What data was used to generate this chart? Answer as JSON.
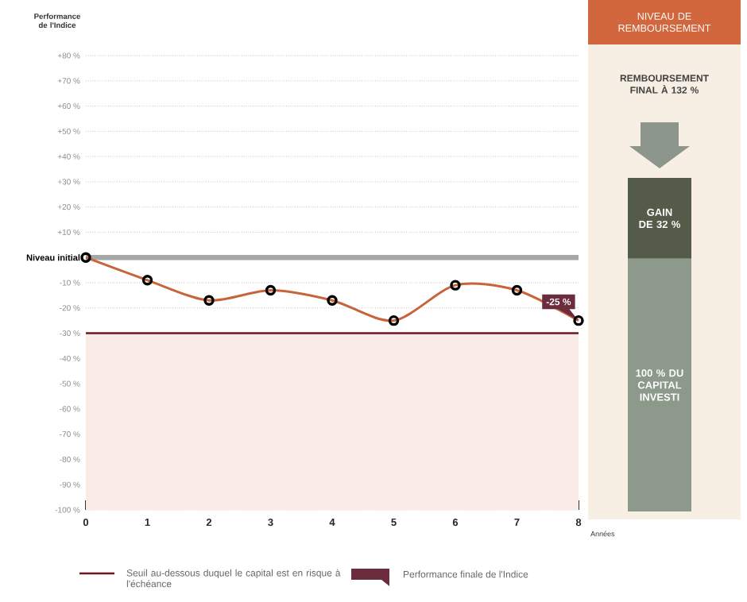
{
  "chart_data": [
    {
      "type": "line",
      "ylabel": "Performance de l'Indice",
      "xlabel": "Années",
      "x": [
        0,
        1,
        2,
        3,
        4,
        5,
        6,
        7,
        8
      ],
      "values": [
        0,
        -9,
        -17,
        -13,
        -17,
        -25,
        -11,
        -13,
        -25
      ],
      "color": "#c8643c",
      "marker": "circle",
      "xlim": [
        0,
        8
      ],
      "ylim": [
        -100,
        80
      ],
      "xticks": [
        0,
        1,
        2,
        3,
        4,
        5,
        6,
        7,
        8
      ],
      "yticks": [
        {
          "value": -100,
          "label": "-100 %"
        },
        {
          "value": -90,
          "label": "-90 %"
        },
        {
          "value": -80,
          "label": "-80 %"
        },
        {
          "value": -70,
          "label": "-70 %"
        },
        {
          "value": -60,
          "label": "-60 %"
        },
        {
          "value": -50,
          "label": "-50 %"
        },
        {
          "value": -40,
          "label": "-40 %"
        },
        {
          "value": -30,
          "label": "-30 %"
        },
        {
          "value": -20,
          "label": "-20 %"
        },
        {
          "value": -10,
          "label": "-10 %"
        },
        {
          "value": 0,
          "label": "Niveau initial"
        },
        {
          "value": 10,
          "label": "+10 %"
        },
        {
          "value": 20,
          "label": "+20 %"
        },
        {
          "value": 30,
          "label": "+30 %"
        },
        {
          "value": 40,
          "label": "+40 %"
        },
        {
          "value": 50,
          "label": "+50 %"
        },
        {
          "value": 60,
          "label": "+60 %"
        },
        {
          "value": 70,
          "label": "+70 %"
        },
        {
          "value": 80,
          "label": "+80 %"
        }
      ],
      "grid": "y",
      "ref_lines": [
        {
          "axis": "y",
          "value": 0,
          "color": "#a6a6a6"
        },
        {
          "axis": "y",
          "value": -30,
          "label": "Seuil au-dessous duquel le capital est en risque à l'échéance",
          "color": "#6e1423"
        }
      ],
      "bands": [
        {
          "axis": "y",
          "from": -100,
          "to": -30,
          "color": "#fbebe6"
        }
      ],
      "annotations": [
        {
          "text": "-25 %",
          "x": 8,
          "y": -25
        },
        "Performance finale de l'Indice"
      ]
    },
    {
      "type": "bar",
      "stacked": true,
      "title": "NIVEAU DE REMBOURSEMENT",
      "subtitle": "REMBOURSEMENT FINAL À 132 %",
      "categories": [
        null
      ],
      "series": [
        {
          "color": "#8d9a8b",
          "values": [
            100
          ],
          "value_labels": [
            "100 % DU CAPITAL INVESTI"
          ]
        },
        {
          "color": "#555b49",
          "values": [
            32
          ],
          "value_labels": [
            "GAIN DE 32 %"
          ]
        }
      ]
    }
  ]
}
